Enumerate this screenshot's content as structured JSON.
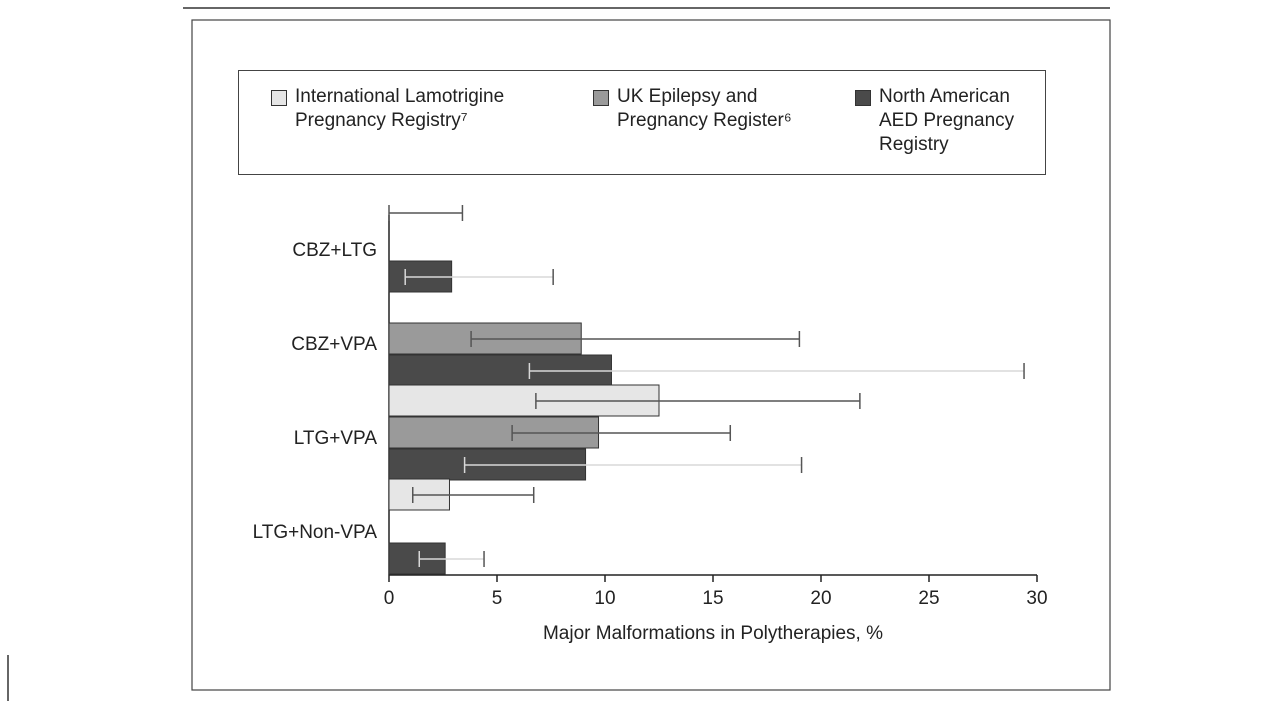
{
  "chart_data": {
    "type": "bar",
    "orientation": "horizontal",
    "xlabel": "Major Malformations in Polytherapies, %",
    "categories": [
      "CBZ+LTG",
      "CBZ+VPA",
      "LTG+VPA",
      "LTG+Non-VPA"
    ],
    "series": [
      {
        "name": "International Lamotrigine Pregnancy Registry⁷",
        "color": "#e6e6e6",
        "values": [
          0,
          null,
          12.5,
          2.8
        ],
        "ci_low": [
          0,
          null,
          6.8,
          1.1
        ],
        "ci_high": [
          3.4,
          null,
          21.8,
          6.7
        ]
      },
      {
        "name": "UK Epilepsy and Pregnancy Register⁶",
        "color": "#9a9a9a",
        "values": [
          null,
          8.9,
          9.7,
          null
        ],
        "ci_low": [
          null,
          3.8,
          5.7,
          null
        ],
        "ci_high": [
          null,
          19.0,
          15.8,
          null
        ]
      },
      {
        "name": "North American AED Pregnancy Registry",
        "color": "#4a4a4a",
        "values": [
          2.9,
          10.3,
          9.1,
          2.6
        ],
        "ci_low": [
          0.75,
          6.5,
          3.5,
          1.4
        ],
        "ci_high": [
          7.6,
          29.4,
          19.1,
          4.4
        ]
      }
    ],
    "xlim": [
      0,
      30
    ],
    "xticks": [
      0,
      5,
      10,
      15,
      20,
      25,
      30
    ]
  }
}
